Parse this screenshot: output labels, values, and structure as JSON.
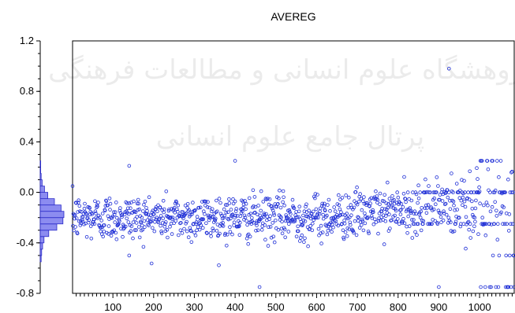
{
  "watermark": {
    "line1": "پژوهشگاه علوم انسانی و مطالعات فرهنگی",
    "line2": "پرتال جامع علوم انسانی"
  },
  "colors": {
    "points": "#1f2fd6",
    "histogram_fill": "#8c8cf0",
    "histogram_stroke": "#2a2ac8",
    "axis": "#000000"
  },
  "chart_data": {
    "type": "scatter",
    "title": "AVEREG",
    "xlabel": "",
    "ylabel": "",
    "xlim": [
      1,
      1085
    ],
    "ylim": [
      -0.8,
      1.2
    ],
    "x_ticks": [
      100,
      200,
      300,
      400,
      500,
      600,
      700,
      800,
      900,
      1000
    ],
    "y_ticks": [
      -0.8,
      -0.4,
      0.0,
      0.4,
      0.8,
      1.2
    ],
    "y_tick_labels": [
      "-0.8",
      "-0.4",
      "0.0",
      "0.4",
      "0.8",
      "1.2"
    ],
    "grid": false,
    "marker": "hollow-circle",
    "n_points": 1085,
    "distribution": {
      "main_center": -0.2,
      "main_spread": 0.09,
      "spread_growth_after": 800,
      "late_levels": [
        0.25,
        0.0,
        -0.25,
        -0.5,
        -0.75
      ]
    },
    "outliers": [
      {
        "x": 140,
        "y": 0.21
      },
      {
        "x": 400,
        "y": 0.25
      },
      {
        "x": 925,
        "y": 0.98
      },
      {
        "x": 140,
        "y": -0.5
      },
      {
        "x": 460,
        "y": -0.75
      },
      {
        "x": 900,
        "y": -0.75
      }
    ],
    "marginal_histogram": {
      "position": "left",
      "bin_edges": [
        -0.55,
        -0.5,
        -0.45,
        -0.4,
        -0.35,
        -0.3,
        -0.25,
        -0.2,
        -0.15,
        -0.1,
        -0.05,
        0.0,
        0.05,
        0.1,
        0.15,
        0.2,
        0.25
      ],
      "counts": [
        2,
        3,
        5,
        8,
        18,
        35,
        48,
        50,
        44,
        30,
        16,
        9,
        4,
        2,
        1,
        1
      ]
    }
  }
}
